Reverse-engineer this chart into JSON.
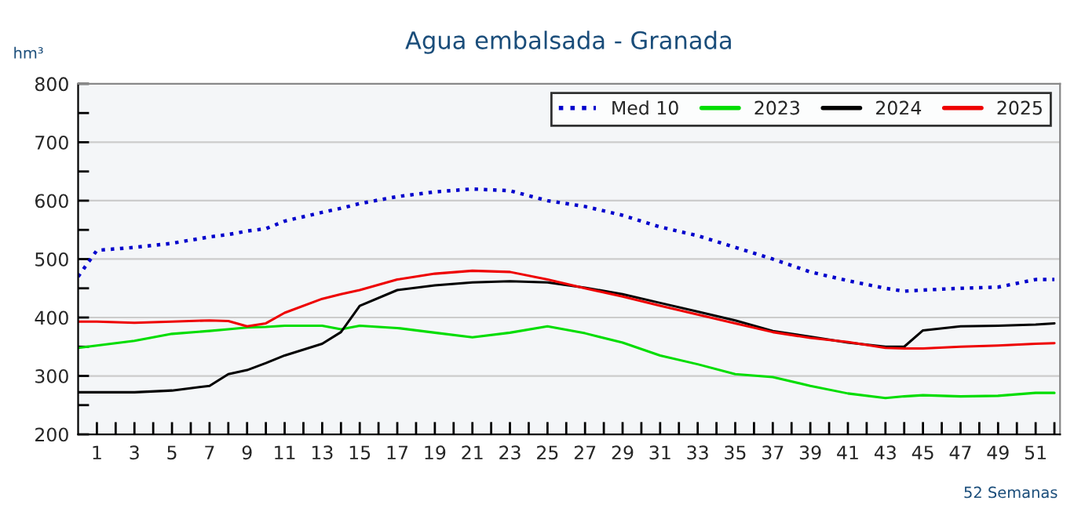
{
  "chart_data": {
    "type": "line",
    "title": "Agua embalsada - Granada",
    "ylabel": "hm³",
    "xlabel": "52 Semanas",
    "x": [
      0,
      1,
      3,
      5,
      7,
      8,
      9,
      10,
      11,
      13,
      14,
      15,
      17,
      19,
      21,
      23,
      25,
      27,
      29,
      31,
      33,
      35,
      37,
      39,
      41,
      43,
      44,
      45,
      47,
      49,
      51,
      52
    ],
    "series": [
      {
        "name": "Med 10",
        "color": "#0000cc",
        "line_style": "dotted",
        "values": [
          470,
          515,
          520,
          527,
          538,
          542,
          548,
          552,
          565,
          580,
          587,
          595,
          607,
          615,
          620,
          617,
          600,
          590,
          575,
          555,
          540,
          520,
          500,
          478,
          463,
          450,
          445,
          447,
          450,
          452,
          465,
          465
        ]
      },
      {
        "name": "2023",
        "color": "#00dd00",
        "line_style": "solid",
        "values": [
          348,
          352,
          360,
          372,
          377,
          380,
          383,
          384,
          386,
          386,
          380,
          386,
          382,
          374,
          366,
          374,
          385,
          373,
          357,
          335,
          320,
          303,
          298,
          283,
          270,
          262,
          265,
          267,
          265,
          266,
          271,
          271
        ]
      },
      {
        "name": "2024",
        "color": "#000000",
        "line_style": "solid",
        "values": [
          272,
          272,
          272,
          275,
          283,
          303,
          310,
          322,
          335,
          355,
          375,
          420,
          447,
          455,
          460,
          462,
          460,
          451,
          440,
          425,
          410,
          395,
          377,
          367,
          357,
          350,
          350,
          378,
          385,
          386,
          388,
          390
        ]
      },
      {
        "name": "2025",
        "color": "#ee0000",
        "line_style": "solid",
        "values": [
          393,
          393,
          391,
          393,
          395,
          394,
          385,
          390,
          408,
          432,
          440,
          447,
          465,
          475,
          480,
          478,
          465,
          450,
          436,
          420,
          405,
          390,
          375,
          365,
          358,
          348,
          347,
          347,
          350,
          352,
          355,
          356
        ]
      }
    ],
    "xlim": [
      0,
      52.3
    ],
    "xticks": [
      {
        "value": 1,
        "label": "1"
      },
      {
        "value": 2,
        "label": null
      },
      {
        "value": 3,
        "label": "3"
      },
      {
        "value": 4,
        "label": null
      },
      {
        "value": 5,
        "label": "5"
      },
      {
        "value": 6,
        "label": null
      },
      {
        "value": 7,
        "label": "7"
      },
      {
        "value": 8,
        "label": null
      },
      {
        "value": 9,
        "label": "9"
      },
      {
        "value": 10,
        "label": null
      },
      {
        "value": 11,
        "label": "11"
      },
      {
        "value": 12,
        "label": null
      },
      {
        "value": 13,
        "label": "13"
      },
      {
        "value": 14,
        "label": null
      },
      {
        "value": 15,
        "label": "15"
      },
      {
        "value": 16,
        "label": null
      },
      {
        "value": 17,
        "label": "17"
      },
      {
        "value": 18,
        "label": null
      },
      {
        "value": 19,
        "label": "19"
      },
      {
        "value": 20,
        "label": null
      },
      {
        "value": 21,
        "label": "21"
      },
      {
        "value": 22,
        "label": null
      },
      {
        "value": 23,
        "label": "23"
      },
      {
        "value": 24,
        "label": null
      },
      {
        "value": 25,
        "label": "25"
      },
      {
        "value": 26,
        "label": null
      },
      {
        "value": 27,
        "label": "27"
      },
      {
        "value": 28,
        "label": null
      },
      {
        "value": 29,
        "label": "29"
      },
      {
        "value": 30,
        "label": null
      },
      {
        "value": 31,
        "label": "31"
      },
      {
        "value": 32,
        "label": null
      },
      {
        "value": 33,
        "label": "33"
      },
      {
        "value": 34,
        "label": null
      },
      {
        "value": 35,
        "label": "35"
      },
      {
        "value": 36,
        "label": null
      },
      {
        "value": 37,
        "label": "37"
      },
      {
        "value": 38,
        "label": null
      },
      {
        "value": 39,
        "label": "39"
      },
      {
        "value": 40,
        "label": null
      },
      {
        "value": 41,
        "label": "41"
      },
      {
        "value": 42,
        "label": null
      },
      {
        "value": 43,
        "label": "43"
      },
      {
        "value": 44,
        "label": null
      },
      {
        "value": 45,
        "label": "45"
      },
      {
        "value": 46,
        "label": null
      },
      {
        "value": 47,
        "label": "47"
      },
      {
        "value": 48,
        "label": null
      },
      {
        "value": 49,
        "label": "49"
      },
      {
        "value": 50,
        "label": null
      },
      {
        "value": 51,
        "label": "51"
      },
      {
        "value": 52,
        "label": null
      }
    ],
    "ylim": [
      200,
      800
    ],
    "yticks": [
      200,
      {
        "value": 250,
        "label": null
      },
      300,
      {
        "value": 350,
        "label": null
      },
      400,
      {
        "value": 450,
        "label": null
      },
      500,
      {
        "value": 550,
        "label": null
      },
      600,
      {
        "value": 650,
        "label": null
      },
      700,
      {
        "value": 750,
        "label": null
      },
      800
    ],
    "grid": "y",
    "legend": "top right",
    "marker": "none"
  }
}
